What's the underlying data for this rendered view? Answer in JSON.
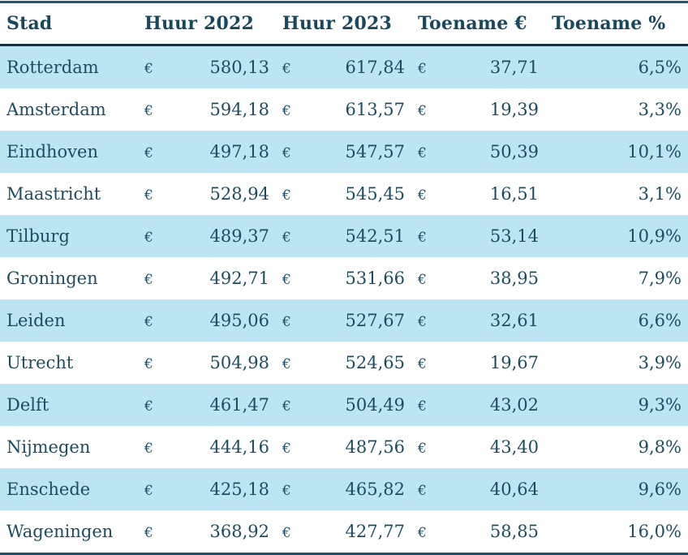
{
  "colors": {
    "text": "#1b4d62",
    "header_text": "#17485e",
    "stripe_row": "#bde4f2",
    "plain_row": "#ffffff",
    "border_top": "#1d5a78",
    "border_header": "#13303f",
    "border_bottom": "#1d4f68"
  },
  "chart_data": {
    "type": "table",
    "title": "",
    "columns": [
      "Stad",
      "Huur 2022",
      "Huur 2023",
      "Toename €",
      "Toename %"
    ],
    "currency_symbol": "€",
    "rows": [
      [
        "Rotterdam",
        "580,13",
        "617,84",
        "37,71",
        "6,5%"
      ],
      [
        "Amsterdam",
        "594,18",
        "613,57",
        "19,39",
        "3,3%"
      ],
      [
        "Eindhoven",
        "497,18",
        "547,57",
        "50,39",
        "10,1%"
      ],
      [
        "Maastricht",
        "528,94",
        "545,45",
        "16,51",
        "3,1%"
      ],
      [
        "Tilburg",
        "489,37",
        "542,51",
        "53,14",
        "10,9%"
      ],
      [
        "Groningen",
        "492,71",
        "531,66",
        "38,95",
        "7,9%"
      ],
      [
        "Leiden",
        "495,06",
        "527,67",
        "32,61",
        "6,6%"
      ],
      [
        "Utrecht",
        "504,98",
        "524,65",
        "19,67",
        "3,9%"
      ],
      [
        "Delft",
        "461,47",
        "504,49",
        "43,02",
        "9,3%"
      ],
      [
        "Nijmegen",
        "444,16",
        "487,56",
        "43,40",
        "9,8%"
      ],
      [
        "Enschede",
        "425,18",
        "465,82",
        "40,64",
        "9,6%"
      ],
      [
        "Wageningen",
        "368,92",
        "427,77",
        "58,85",
        "16,0%"
      ]
    ]
  }
}
